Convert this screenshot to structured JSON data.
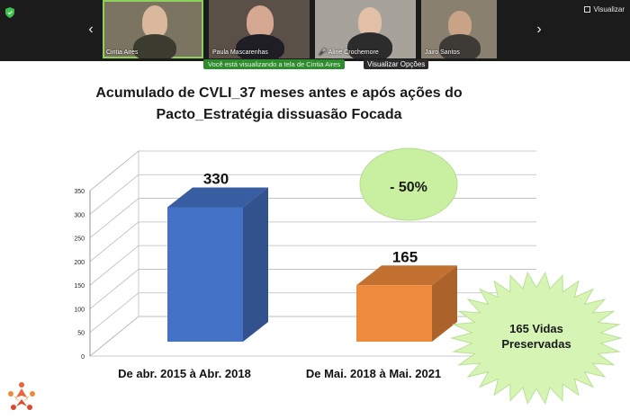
{
  "meeting": {
    "participants": [
      {
        "name": "Cintia Aires",
        "muted": false,
        "active": true
      },
      {
        "name": "Paula Mascarenhas",
        "muted": false,
        "active": false
      },
      {
        "name": "Aline Crochemore",
        "muted": true,
        "active": false
      },
      {
        "name": "Jairo Santos",
        "muted": false,
        "active": false
      }
    ],
    "view_label": "Visualizar",
    "share_message": "Você está visualizando a tela de Cintia Aires",
    "view_options": "Visualizar Opções"
  },
  "slide": {
    "title_line1": "Acumulado de CVLI_37 meses antes e após ações do",
    "title_line2": "Pacto_Estratégia dissuasão Focada",
    "bubble_text": "- 50%",
    "burst_line1": "165 Vidas",
    "burst_line2": "Preservadas"
  },
  "chart_data": {
    "type": "bar",
    "categories": [
      "De abr. 2015 à Abr. 2018",
      "De Mai. 2018 à Mai. 2021"
    ],
    "values": [
      330,
      165
    ],
    "data_labels": [
      "330",
      "165"
    ],
    "ylim": [
      0,
      350
    ],
    "yticks": [
      0,
      50,
      100,
      150,
      200,
      250,
      300,
      350
    ],
    "colors": [
      "#4472c4",
      "#ed8a3c"
    ]
  },
  "colors": {
    "bubble_fill": "#c9f0a0",
    "burst_fill": "#d6f5b5",
    "share_green": "#2e8b2e"
  }
}
